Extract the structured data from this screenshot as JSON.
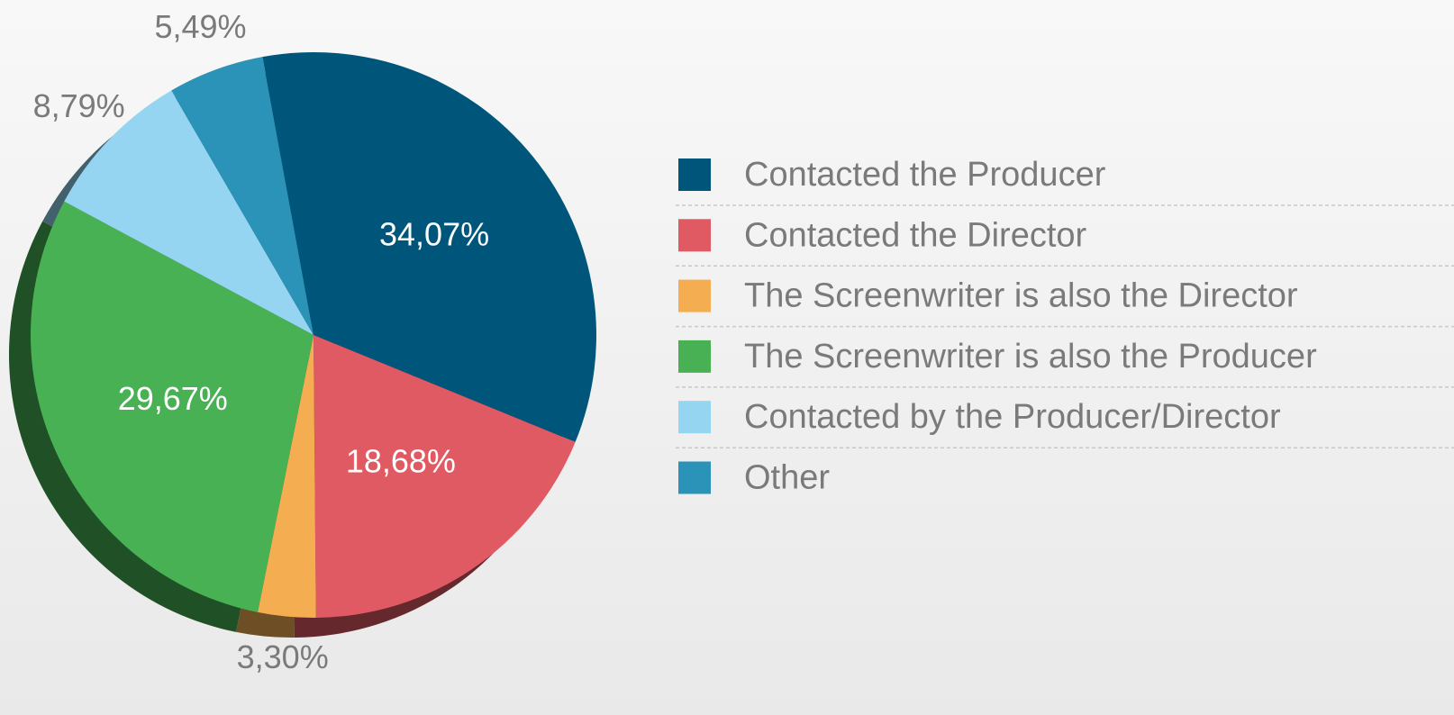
{
  "chart_data": {
    "type": "pie",
    "categories": [
      "Contacted the Producer",
      "Contacted the Director",
      "The Screenwriter is also the Director",
      "The Screenwriter is also the Producer",
      "Contacted by the Producer/Director",
      "Other"
    ],
    "values": [
      34.07,
      18.68,
      3.3,
      29.67,
      8.79,
      5.49
    ],
    "value_labels": [
      "34,07%",
      "18,68%",
      "3,30%",
      "29,67%",
      "8,79%",
      "5,49%"
    ],
    "colors": [
      "#00567a",
      "#e05a63",
      "#f5ad52",
      "#48b154",
      "#95d5f2",
      "#2c93b8"
    ],
    "legend": "right"
  }
}
